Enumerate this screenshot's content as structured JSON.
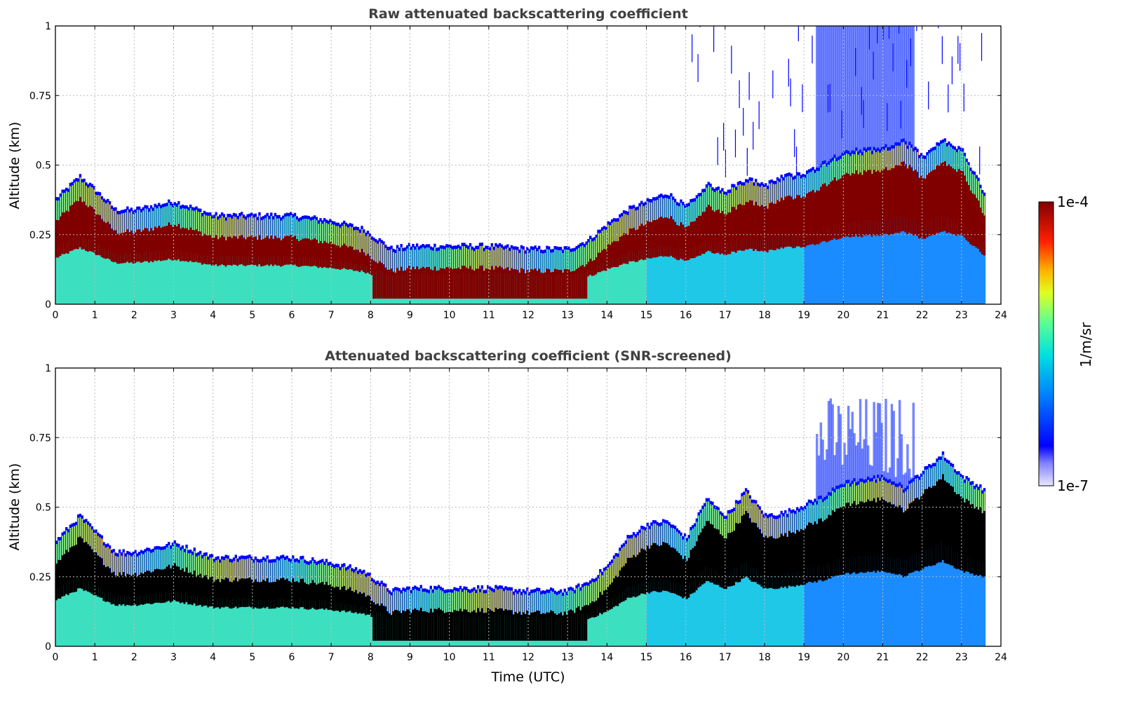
{
  "chart_data": [
    {
      "type": "heatmap",
      "title": "Raw attenuated backscattering coefficient",
      "variant": "raw",
      "xlabel": "",
      "ylabel": "Altitude (km)",
      "xlim": [
        0,
        24
      ],
      "ylim": [
        0,
        1
      ],
      "xticks": [
        "0",
        "1",
        "2",
        "3",
        "4",
        "5",
        "6",
        "7",
        "8",
        "9",
        "10",
        "11",
        "12",
        "13",
        "14",
        "15",
        "16",
        "17",
        "18",
        "19",
        "20",
        "21",
        "22",
        "23",
        "24"
      ],
      "yticks": [
        "0",
        "0.25",
        "0.5",
        "0.75",
        "1"
      ],
      "grid": true,
      "data_end_time": 23.6,
      "layer_top_km": [
        [
          0,
          0.37
        ],
        [
          0.6,
          0.45
        ],
        [
          1,
          0.4
        ],
        [
          1.5,
          0.33
        ],
        [
          2,
          0.33
        ],
        [
          3,
          0.36
        ],
        [
          4,
          0.31
        ],
        [
          5,
          0.31
        ],
        [
          6,
          0.31
        ],
        [
          7,
          0.29
        ],
        [
          7.8,
          0.26
        ],
        [
          8.5,
          0.19
        ],
        [
          9,
          0.2
        ],
        [
          10,
          0.2
        ],
        [
          11,
          0.2
        ],
        [
          12,
          0.19
        ],
        [
          13,
          0.19
        ],
        [
          13.5,
          0.22
        ],
        [
          14,
          0.28
        ],
        [
          14.5,
          0.33
        ],
        [
          15,
          0.36
        ],
        [
          15.5,
          0.39
        ],
        [
          16,
          0.34
        ],
        [
          16.5,
          0.42
        ],
        [
          17,
          0.4
        ],
        [
          17.5,
          0.44
        ],
        [
          18,
          0.42
        ],
        [
          18.5,
          0.45
        ],
        [
          19,
          0.46
        ],
        [
          19.5,
          0.5
        ],
        [
          20,
          0.54
        ],
        [
          21,
          0.55
        ],
        [
          21.5,
          0.58
        ],
        [
          22,
          0.52
        ],
        [
          22.5,
          0.58
        ],
        [
          23,
          0.54
        ],
        [
          23.6,
          0.38
        ]
      ]
    },
    {
      "type": "heatmap",
      "title": "Attenuated backscattering coefficient (SNR-screened)",
      "variant": "screened",
      "xlabel": "Time (UTC)",
      "ylabel": "Altitude (km)",
      "xlim": [
        0,
        24
      ],
      "ylim": [
        0,
        1
      ],
      "xticks": [
        "0",
        "1",
        "2",
        "3",
        "4",
        "5",
        "6",
        "7",
        "8",
        "9",
        "10",
        "11",
        "12",
        "13",
        "14",
        "15",
        "16",
        "17",
        "18",
        "19",
        "20",
        "21",
        "22",
        "23",
        "24"
      ],
      "yticks": [
        "0",
        "0.25",
        "0.5",
        "0.75",
        "1"
      ],
      "grid": true,
      "data_end_time": 23.6,
      "layer_top_km": [
        [
          0,
          0.37
        ],
        [
          0.6,
          0.46
        ],
        [
          1,
          0.4
        ],
        [
          1.5,
          0.33
        ],
        [
          2,
          0.33
        ],
        [
          3,
          0.36
        ],
        [
          4,
          0.31
        ],
        [
          5,
          0.31
        ],
        [
          6,
          0.31
        ],
        [
          7,
          0.29
        ],
        [
          7.8,
          0.26
        ],
        [
          8.5,
          0.19
        ],
        [
          9,
          0.2
        ],
        [
          10,
          0.2
        ],
        [
          11,
          0.2
        ],
        [
          12,
          0.19
        ],
        [
          13,
          0.19
        ],
        [
          13.5,
          0.22
        ],
        [
          14,
          0.28
        ],
        [
          14.5,
          0.38
        ],
        [
          15,
          0.43
        ],
        [
          15.5,
          0.44
        ],
        [
          16,
          0.38
        ],
        [
          16.5,
          0.52
        ],
        [
          17,
          0.46
        ],
        [
          17.5,
          0.55
        ],
        [
          18,
          0.46
        ],
        [
          18.5,
          0.47
        ],
        [
          19,
          0.5
        ],
        [
          19.5,
          0.53
        ],
        [
          20,
          0.58
        ],
        [
          21,
          0.6
        ],
        [
          21.5,
          0.56
        ],
        [
          22,
          0.62
        ],
        [
          22.5,
          0.68
        ],
        [
          23,
          0.6
        ],
        [
          23.6,
          0.55
        ]
      ]
    }
  ],
  "colorbar": {
    "max_label": "1e-4",
    "min_label": "1e-7",
    "unit": "1/m/sr",
    "scale": "log"
  },
  "colors": {
    "title": "#404040",
    "saturated_screened": "#000000",
    "saturated_raw": "#800000",
    "grid": "#bbbbbb"
  }
}
